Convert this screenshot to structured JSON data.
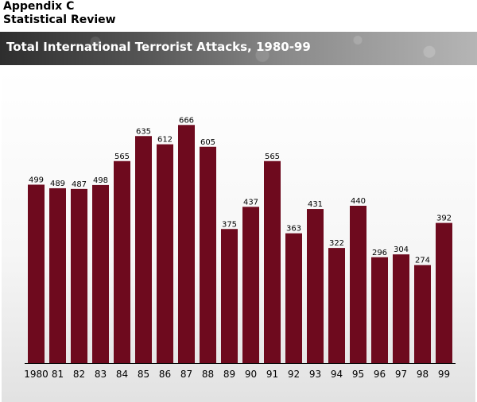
{
  "header": {
    "line1": "Appendix C",
    "line2": "Statistical Review"
  },
  "chart_data": {
    "type": "bar",
    "title": "Total International Terrorist Attacks, 1980-99",
    "categories": [
      "1980",
      "81",
      "82",
      "83",
      "84",
      "85",
      "86",
      "87",
      "88",
      "89",
      "90",
      "91",
      "92",
      "93",
      "94",
      "95",
      "96",
      "97",
      "98",
      "99"
    ],
    "values": [
      499,
      489,
      487,
      498,
      565,
      635,
      612,
      666,
      605,
      375,
      437,
      565,
      363,
      431,
      322,
      440,
      296,
      304,
      274,
      392
    ],
    "ylim": [
      0,
      700
    ],
    "grid": false,
    "xlabel": "",
    "ylabel": "",
    "colors": {
      "bar": "#6e0a1e",
      "axis": "#000000"
    }
  }
}
